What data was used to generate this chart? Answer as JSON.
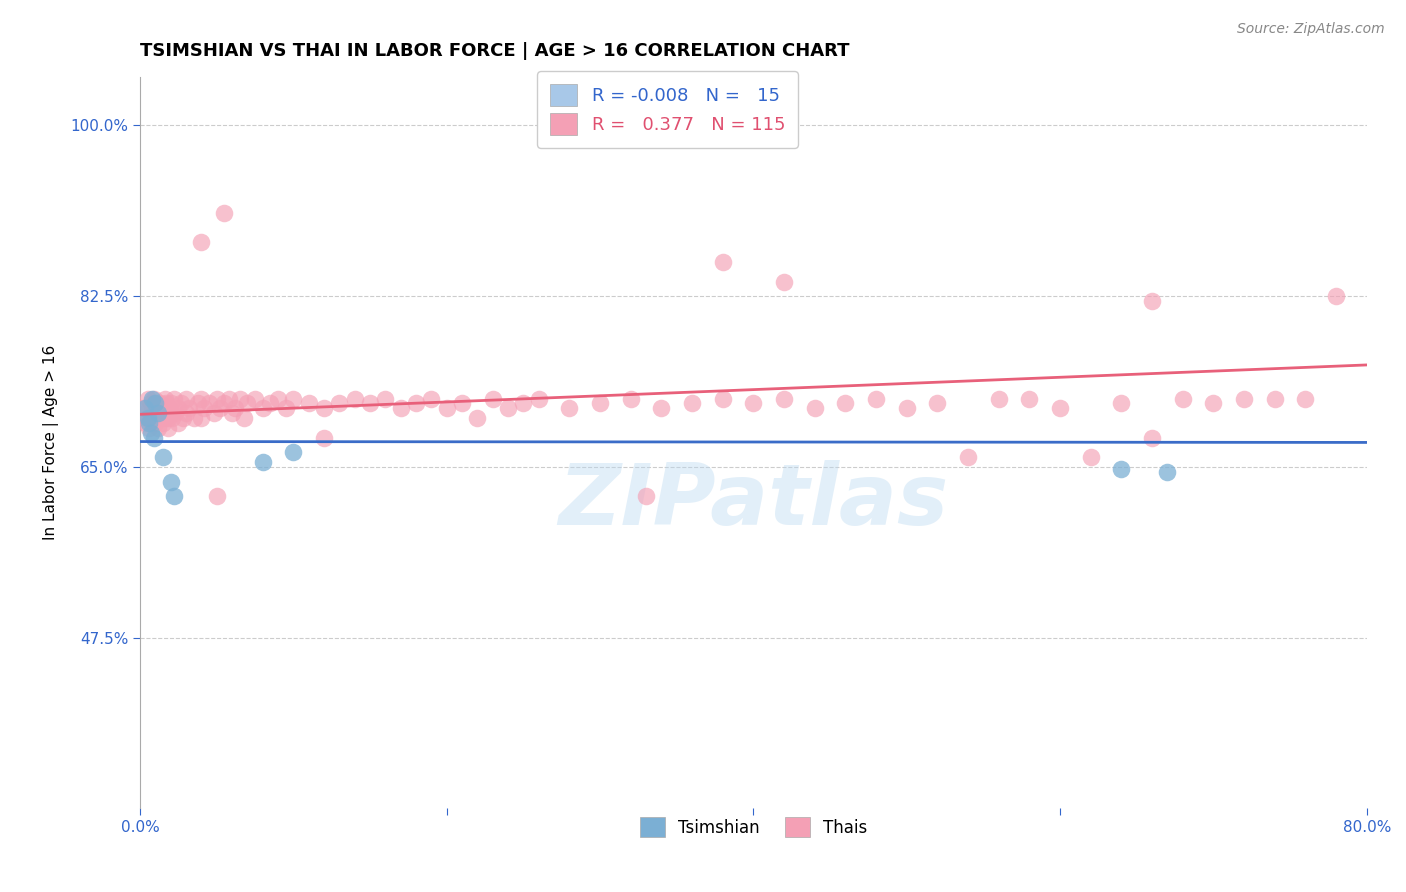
{
  "title": "TSIMSHIAN VS THAI IN LABOR FORCE | AGE > 16 CORRELATION CHART",
  "source_text": "Source: ZipAtlas.com",
  "ylabel": "In Labor Force | Age > 16",
  "xlim": [
    0.0,
    0.8
  ],
  "ylim": [
    0.3,
    1.05
  ],
  "yticks": [
    0.475,
    0.65,
    0.825,
    1.0
  ],
  "ytick_labels": [
    "47.5%",
    "65.0%",
    "82.5%",
    "100.0%"
  ],
  "xticks": [
    0.0,
    0.2,
    0.4,
    0.6,
    0.8
  ],
  "xtick_labels": [
    "0.0%",
    "",
    "",
    "",
    "80.0%"
  ],
  "watermark": "ZIPatlas",
  "tsimshian_color": "#7bafd4",
  "thais_color": "#f4a0b5",
  "tsimshian_line_color": "#3a6cc8",
  "thais_line_color": "#e8607a",
  "legend_blue_color": "#a8c8e8",
  "legend_pink_color": "#f4a0b5",
  "background_color": "#ffffff",
  "grid_color": "#cccccc",
  "axis_color": "#aaaaaa",
  "title_fontsize": 13,
  "label_fontsize": 11,
  "tick_fontsize": 11,
  "tick_color": "#3366cc",
  "source_fontsize": 10,
  "tsimshian_points": [
    [
      0.003,
      0.71
    ],
    [
      0.005,
      0.7
    ],
    [
      0.006,
      0.695
    ],
    [
      0.007,
      0.685
    ],
    [
      0.008,
      0.72
    ],
    [
      0.009,
      0.68
    ],
    [
      0.01,
      0.715
    ],
    [
      0.012,
      0.705
    ],
    [
      0.015,
      0.66
    ],
    [
      0.02,
      0.635
    ],
    [
      0.022,
      0.62
    ],
    [
      0.08,
      0.655
    ],
    [
      0.1,
      0.665
    ],
    [
      0.64,
      0.648
    ],
    [
      0.67,
      0.645
    ]
  ],
  "thais_points": [
    [
      0.002,
      0.71
    ],
    [
      0.003,
      0.7
    ],
    [
      0.004,
      0.695
    ],
    [
      0.005,
      0.72
    ],
    [
      0.005,
      0.7
    ],
    [
      0.006,
      0.71
    ],
    [
      0.006,
      0.69
    ],
    [
      0.007,
      0.705
    ],
    [
      0.007,
      0.715
    ],
    [
      0.008,
      0.7
    ],
    [
      0.008,
      0.695
    ],
    [
      0.009,
      0.71
    ],
    [
      0.009,
      0.72
    ],
    [
      0.01,
      0.705
    ],
    [
      0.01,
      0.695
    ],
    [
      0.011,
      0.715
    ],
    [
      0.011,
      0.7
    ],
    [
      0.012,
      0.71
    ],
    [
      0.012,
      0.69
    ],
    [
      0.013,
      0.705
    ],
    [
      0.013,
      0.715
    ],
    [
      0.014,
      0.7
    ],
    [
      0.015,
      0.71
    ],
    [
      0.015,
      0.695
    ],
    [
      0.016,
      0.72
    ],
    [
      0.016,
      0.7
    ],
    [
      0.017,
      0.705
    ],
    [
      0.017,
      0.715
    ],
    [
      0.018,
      0.7
    ],
    [
      0.018,
      0.69
    ],
    [
      0.019,
      0.71
    ],
    [
      0.02,
      0.705
    ],
    [
      0.02,
      0.715
    ],
    [
      0.021,
      0.7
    ],
    [
      0.022,
      0.72
    ],
    [
      0.023,
      0.705
    ],
    [
      0.025,
      0.71
    ],
    [
      0.025,
      0.695
    ],
    [
      0.027,
      0.715
    ],
    [
      0.028,
      0.7
    ],
    [
      0.03,
      0.72
    ],
    [
      0.03,
      0.705
    ],
    [
      0.032,
      0.71
    ],
    [
      0.035,
      0.7
    ],
    [
      0.038,
      0.715
    ],
    [
      0.04,
      0.72
    ],
    [
      0.04,
      0.7
    ],
    [
      0.042,
      0.71
    ],
    [
      0.045,
      0.715
    ],
    [
      0.048,
      0.705
    ],
    [
      0.05,
      0.72
    ],
    [
      0.052,
      0.71
    ],
    [
      0.055,
      0.715
    ],
    [
      0.058,
      0.72
    ],
    [
      0.06,
      0.705
    ],
    [
      0.062,
      0.71
    ],
    [
      0.065,
      0.72
    ],
    [
      0.068,
      0.7
    ],
    [
      0.07,
      0.715
    ],
    [
      0.075,
      0.72
    ],
    [
      0.08,
      0.71
    ],
    [
      0.085,
      0.715
    ],
    [
      0.09,
      0.72
    ],
    [
      0.095,
      0.71
    ],
    [
      0.1,
      0.72
    ],
    [
      0.11,
      0.715
    ],
    [
      0.12,
      0.71
    ],
    [
      0.13,
      0.715
    ],
    [
      0.14,
      0.72
    ],
    [
      0.15,
      0.715
    ],
    [
      0.16,
      0.72
    ],
    [
      0.17,
      0.71
    ],
    [
      0.18,
      0.715
    ],
    [
      0.19,
      0.72
    ],
    [
      0.2,
      0.71
    ],
    [
      0.21,
      0.715
    ],
    [
      0.22,
      0.7
    ],
    [
      0.23,
      0.72
    ],
    [
      0.24,
      0.71
    ],
    [
      0.25,
      0.715
    ],
    [
      0.26,
      0.72
    ],
    [
      0.28,
      0.71
    ],
    [
      0.3,
      0.715
    ],
    [
      0.32,
      0.72
    ],
    [
      0.34,
      0.71
    ],
    [
      0.36,
      0.715
    ],
    [
      0.38,
      0.72
    ],
    [
      0.4,
      0.715
    ],
    [
      0.42,
      0.72
    ],
    [
      0.44,
      0.71
    ],
    [
      0.46,
      0.715
    ],
    [
      0.48,
      0.72
    ],
    [
      0.5,
      0.71
    ],
    [
      0.52,
      0.715
    ],
    [
      0.54,
      0.66
    ],
    [
      0.56,
      0.72
    ],
    [
      0.58,
      0.72
    ],
    [
      0.6,
      0.71
    ],
    [
      0.62,
      0.66
    ],
    [
      0.64,
      0.715
    ],
    [
      0.66,
      0.68
    ],
    [
      0.68,
      0.72
    ],
    [
      0.7,
      0.715
    ],
    [
      0.72,
      0.72
    ],
    [
      0.74,
      0.72
    ],
    [
      0.76,
      0.72
    ],
    [
      0.78,
      0.825
    ],
    [
      0.04,
      0.88
    ],
    [
      0.055,
      0.91
    ],
    [
      0.38,
      0.86
    ],
    [
      0.42,
      0.84
    ],
    [
      0.05,
      0.62
    ],
    [
      0.33,
      0.62
    ],
    [
      0.12,
      0.68
    ],
    [
      0.66,
      0.82
    ]
  ]
}
